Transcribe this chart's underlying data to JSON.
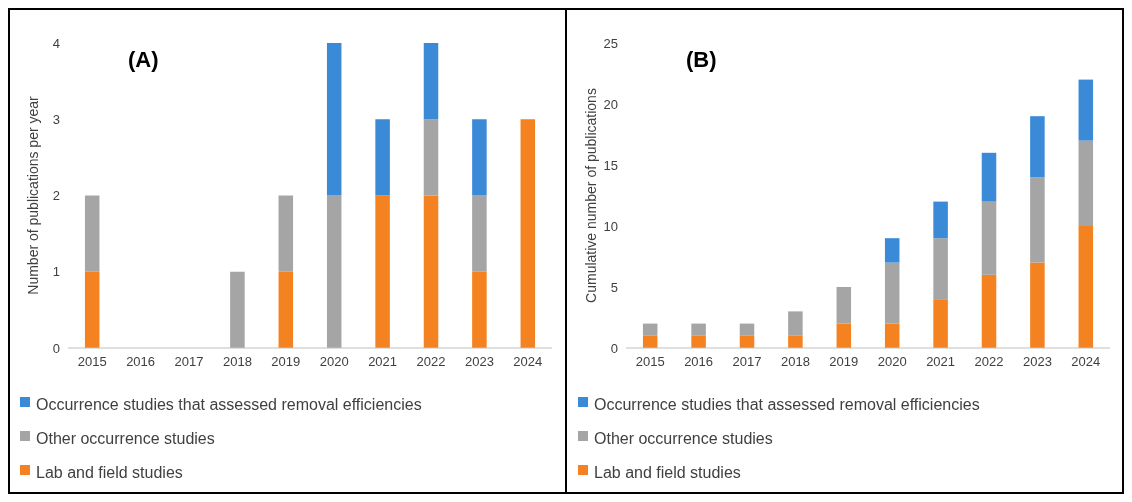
{
  "chart_data": [
    {
      "type": "bar",
      "title": "(A)",
      "ylabel": "Number of publications per year",
      "categories": [
        "2015",
        "2016",
        "2017",
        "2018",
        "2019",
        "2020",
        "2021",
        "2022",
        "2023",
        "2024"
      ],
      "stacked": true,
      "ylim": [
        0,
        4
      ],
      "yticks": [
        0,
        1,
        2,
        3,
        4
      ],
      "legend": "bottom",
      "series": [
        {
          "name": "Lab and field studies",
          "color": "#f58220",
          "values": [
            1,
            0,
            0,
            0,
            1,
            0,
            2,
            2,
            1,
            3
          ]
        },
        {
          "name": "Other occurrence studies",
          "color": "#a5a5a5",
          "values": [
            1,
            0,
            0,
            1,
            1,
            2,
            0,
            1,
            1,
            0
          ]
        },
        {
          "name": "Occurrence studies that assessed removal efficiencies",
          "color": "#3b8ad8",
          "values": [
            0,
            0,
            0,
            0,
            0,
            2,
            1,
            1,
            1,
            0
          ]
        }
      ]
    },
    {
      "type": "bar",
      "title": "(B)",
      "ylabel": "Cumulative number of publications",
      "categories": [
        "2015",
        "2016",
        "2017",
        "2018",
        "2019",
        "2020",
        "2021",
        "2022",
        "2023",
        "2024"
      ],
      "stacked": true,
      "ylim": [
        0,
        25
      ],
      "yticks": [
        0,
        5,
        10,
        15,
        20,
        25
      ],
      "legend": "bottom",
      "series": [
        {
          "name": "Lab and field studies",
          "color": "#f58220",
          "values": [
            1,
            1,
            1,
            1,
            2,
            2,
            4,
            6,
            7,
            10
          ]
        },
        {
          "name": "Other occurrence studies",
          "color": "#a5a5a5",
          "values": [
            1,
            1,
            1,
            2,
            3,
            5,
            5,
            6,
            7,
            7
          ]
        },
        {
          "name": "Occurrence studies that assessed removal efficiencies",
          "color": "#3b8ad8",
          "values": [
            0,
            0,
            0,
            0,
            0,
            2,
            3,
            4,
            5,
            5
          ]
        }
      ]
    }
  ]
}
